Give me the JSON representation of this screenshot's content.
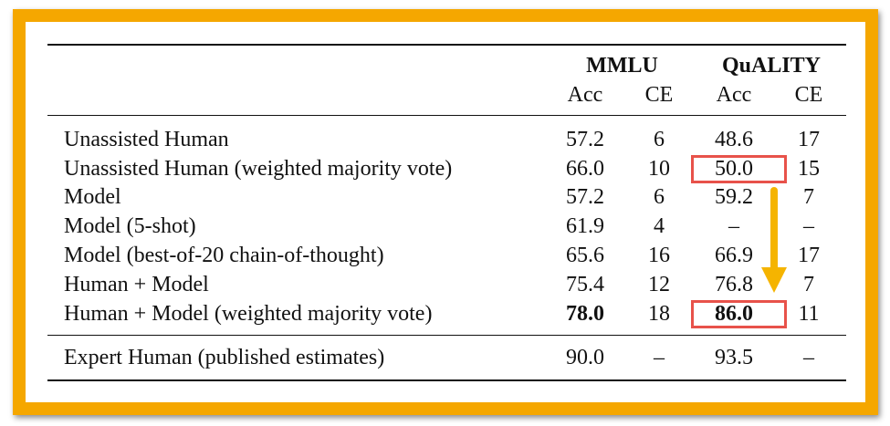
{
  "table": {
    "groups": [
      "MMLU",
      "QuALITY"
    ],
    "subheaders": [
      "Acc",
      "CE",
      "Acc",
      "CE"
    ],
    "rows": [
      {
        "label": "Unassisted Human",
        "cells": [
          "57.2",
          "6",
          "48.6",
          "17"
        ]
      },
      {
        "label": "Unassisted Human (weighted majority vote)",
        "cells": [
          "66.0",
          "10",
          "50.0",
          "15"
        ]
      },
      {
        "label": "Model",
        "cells": [
          "57.2",
          "6",
          "59.2",
          "7"
        ]
      },
      {
        "label": "Model (5-shot)",
        "cells": [
          "61.9",
          "4",
          "–",
          "–"
        ]
      },
      {
        "label": "Model (best-of-20 chain-of-thought)",
        "cells": [
          "65.6",
          "16",
          "66.9",
          "17"
        ]
      },
      {
        "label": "Human + Model",
        "cells": [
          "75.4",
          "12",
          "76.8",
          "7"
        ]
      },
      {
        "label": "Human + Model (weighted majority vote)",
        "cells": [
          "78.0",
          "18",
          "86.0",
          "11"
        ]
      }
    ],
    "footer_rows": [
      {
        "label": "Expert Human (published estimates)",
        "cells": [
          "90.0",
          "–",
          "93.5",
          "–"
        ]
      }
    ]
  }
}
